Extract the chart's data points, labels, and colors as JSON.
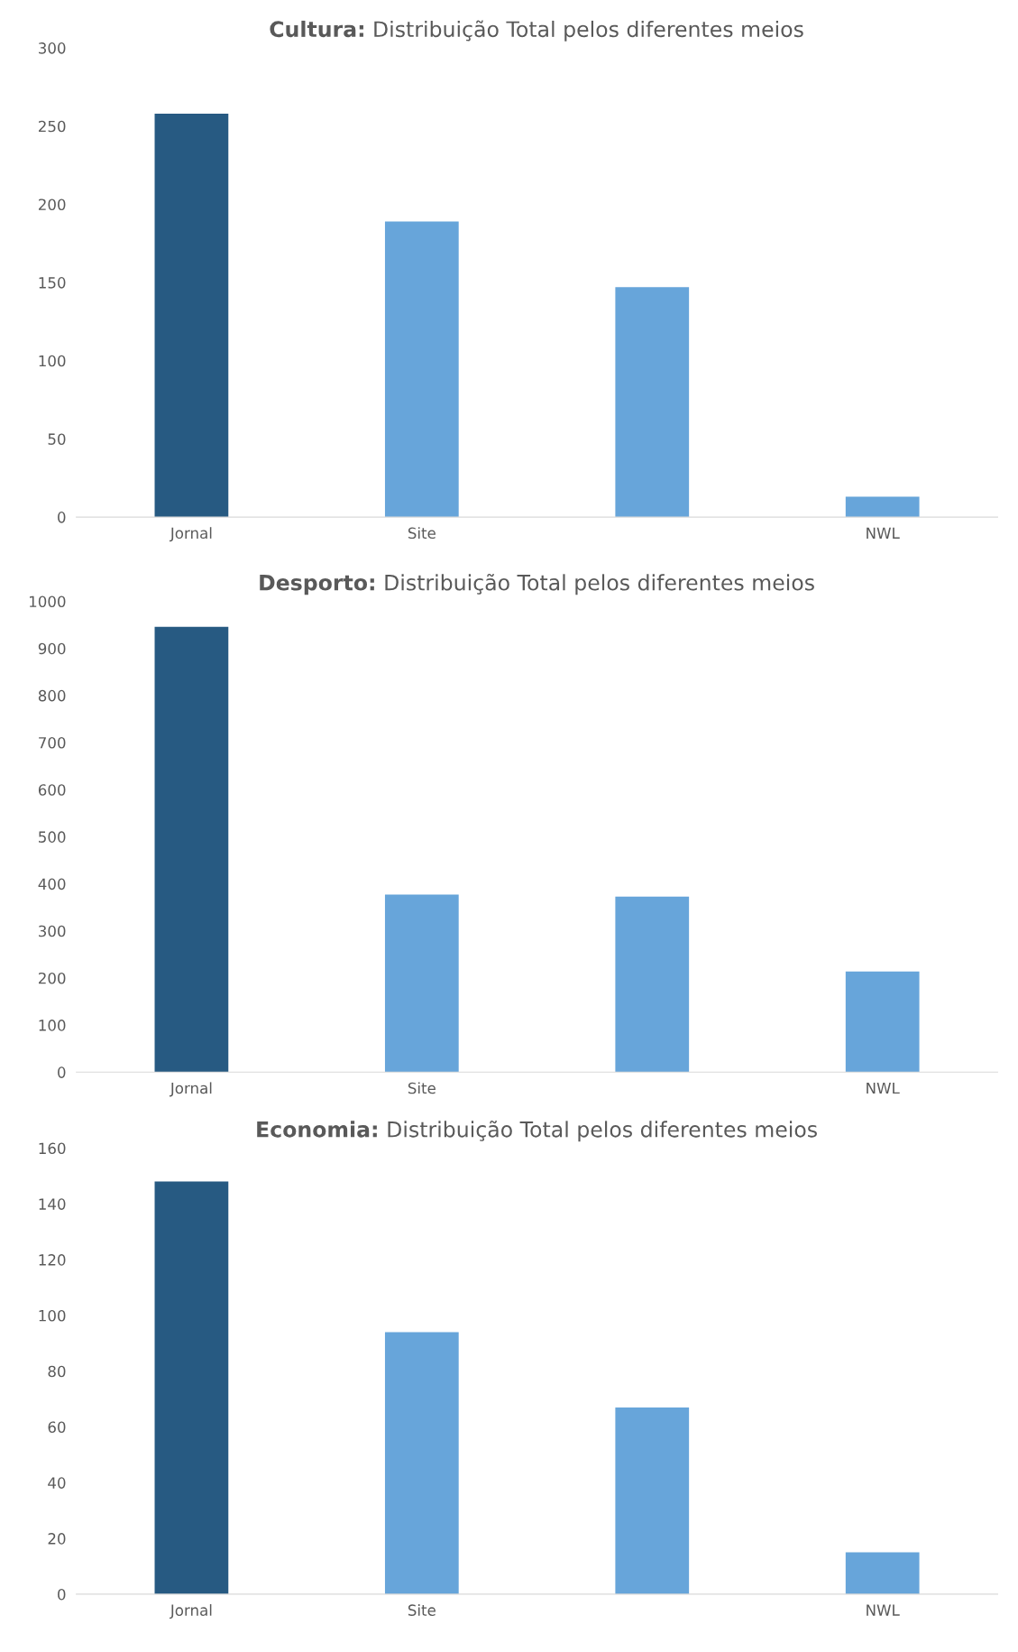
{
  "chart_data": [
    {
      "type": "bar",
      "title": "Cultura: Distribuição Total pelos diferentes meios",
      "categories": [
        "Jornal",
        "Site",
        null,
        "NWL"
      ],
      "values": [
        258,
        189,
        147,
        13
      ],
      "colors": [
        "#275a82",
        "#67a5da",
        "#67a5da",
        "#67a5da"
      ],
      "ylim": [
        0,
        300
      ],
      "yticks": [
        0,
        50,
        100,
        150,
        200,
        250,
        300
      ],
      "grid": false
    },
    {
      "type": "bar",
      "title": "Desporto: Distribuição Total pelos diferentes meios",
      "categories": [
        "Jornal",
        "Site",
        null,
        "NWL"
      ],
      "values": [
        946,
        377,
        373,
        214
      ],
      "colors": [
        "#275a82",
        "#67a5da",
        "#67a5da",
        "#67a5da"
      ],
      "ylim": [
        0,
        1000
      ],
      "yticks": [
        0,
        100,
        200,
        300,
        400,
        500,
        600,
        700,
        800,
        900,
        1000
      ],
      "grid": false
    },
    {
      "type": "bar",
      "title": "Economia: Distribuição Total pelos diferentes meios",
      "categories": [
        "Jornal",
        "Site",
        null,
        "NWL"
      ],
      "values": [
        148,
        94,
        67,
        15
      ],
      "colors": [
        "#275a82",
        "#67a5da",
        "#67a5da",
        "#67a5da"
      ],
      "ylim": [
        0,
        160
      ],
      "yticks": [
        0,
        20,
        40,
        60,
        80,
        100,
        120,
        140,
        160
      ],
      "grid": false
    }
  ]
}
